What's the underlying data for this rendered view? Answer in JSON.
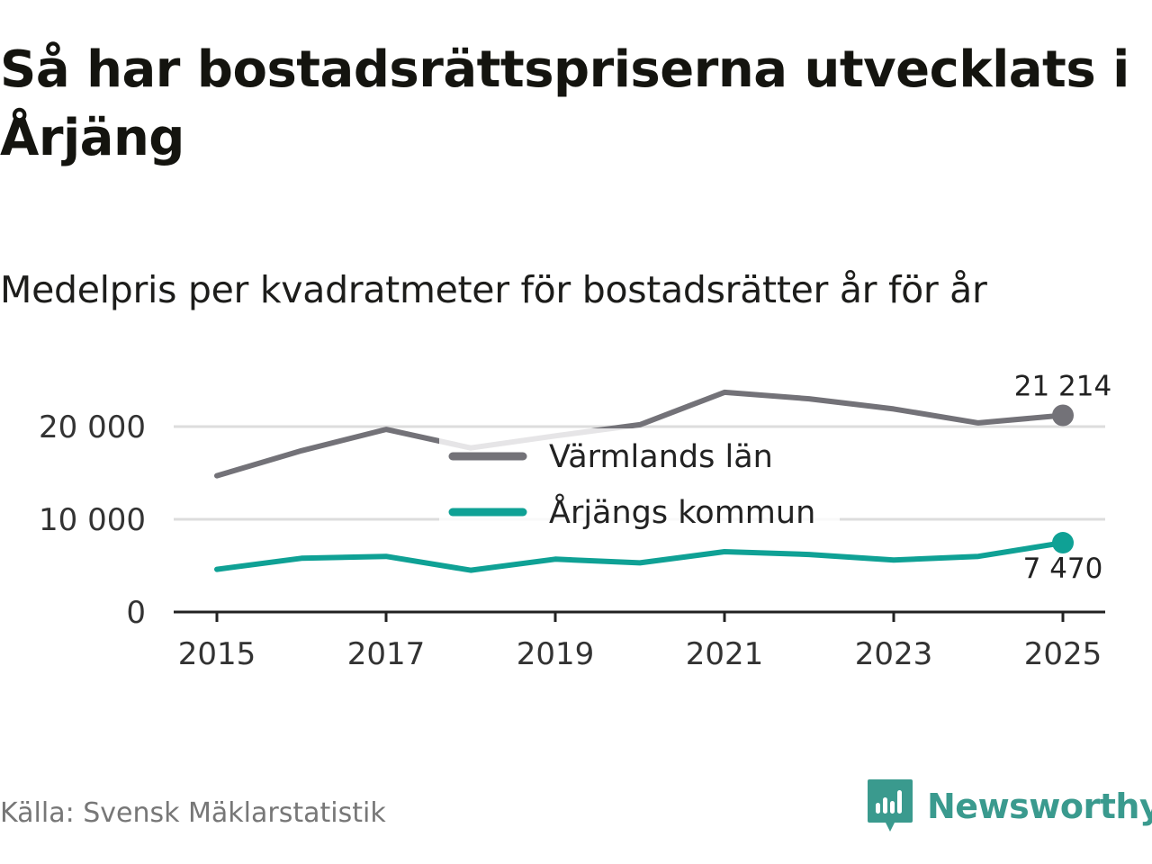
{
  "title": "Så har bostadsrättspriserna utvecklats i Årjäng",
  "subtitle": "Medelpris per kvadratmeter för bostadsrätter år för år",
  "source": "Källa: Svensk Mäklarstatistik",
  "brand": {
    "name": "Newsworthy",
    "icon": "newsworthy-logo-icon",
    "color": "#3a9a8e"
  },
  "chart_data": {
    "type": "line",
    "title": "Så har bostadsrättspriserna utvecklats i Årjäng",
    "subtitle": "Medelpris per kvadratmeter för bostadsrätter år för år",
    "xlabel": "",
    "ylabel": "",
    "x": [
      2015,
      2016,
      2017,
      2018,
      2019,
      2020,
      2021,
      2022,
      2023,
      2024,
      2025
    ],
    "xlim": [
      2014.5,
      2025.5
    ],
    "ylim": [
      0,
      25000
    ],
    "x_ticks": [
      2015,
      2017,
      2019,
      2021,
      2023,
      2025
    ],
    "x_tick_labels": [
      "2015",
      "2017",
      "2019",
      "2021",
      "2023",
      "2025"
    ],
    "y_ticks": [
      0,
      10000,
      20000
    ],
    "y_tick_labels": [
      "0",
      "10 000",
      "20 000"
    ],
    "grid": true,
    "legend_position": "center",
    "series": [
      {
        "name": "Värmlands län",
        "color": "#737278",
        "values": [
          14700,
          17400,
          19700,
          17700,
          19000,
          20200,
          23700,
          23000,
          21900,
          20400,
          21214
        ],
        "end_label": "21 214"
      },
      {
        "name": "Årjängs kommun",
        "color": "#0fa195",
        "values": [
          4600,
          5800,
          6000,
          4500,
          5700,
          5300,
          6500,
          6200,
          5600,
          6000,
          7470
        ],
        "end_label": "7 470"
      }
    ]
  }
}
